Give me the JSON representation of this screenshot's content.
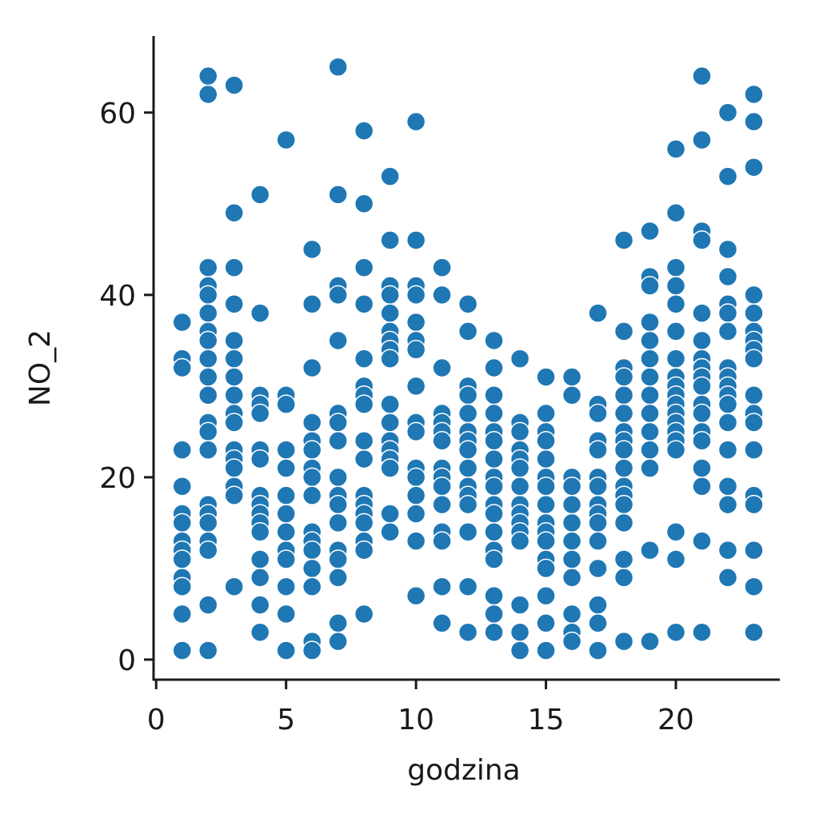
{
  "chart_data": {
    "type": "scatter",
    "x_label": "godzina",
    "y_label": "NO_2",
    "color": "#1f77b4",
    "edge_color": "#ffffff",
    "x": [
      1,
      1,
      1,
      1,
      1,
      1,
      1,
      1,
      1,
      1,
      1,
      1,
      1,
      1,
      2,
      2,
      2,
      2,
      2,
      2,
      2,
      2,
      2,
      2,
      2,
      2,
      2,
      2,
      2,
      2,
      2,
      2,
      2,
      2,
      2,
      3,
      3,
      3,
      3,
      3,
      3,
      3,
      3,
      3,
      3,
      3,
      3,
      3,
      3,
      3,
      3,
      4,
      4,
      4,
      4,
      4,
      4,
      4,
      4,
      4,
      4,
      4,
      4,
      4,
      4,
      4,
      4,
      5,
      5,
      5,
      5,
      5,
      5,
      5,
      5,
      5,
      5,
      5,
      5,
      5,
      6,
      6,
      6,
      6,
      6,
      6,
      6,
      6,
      6,
      6,
      6,
      6,
      6,
      6,
      6,
      6,
      7,
      7,
      7,
      7,
      7,
      7,
      7,
      7,
      7,
      7,
      7,
      7,
      7,
      7,
      7,
      7,
      7,
      8,
      8,
      8,
      8,
      8,
      8,
      8,
      8,
      8,
      8,
      8,
      8,
      8,
      8,
      8,
      8,
      8,
      9,
      9,
      9,
      9,
      9,
      9,
      9,
      9,
      9,
      9,
      9,
      9,
      9,
      9,
      9,
      9,
      9,
      10,
      10,
      10,
      10,
      10,
      10,
      10,
      10,
      10,
      10,
      10,
      10,
      10,
      10,
      10,
      10,
      11,
      11,
      11,
      11,
      11,
      11,
      11,
      11,
      11,
      11,
      11,
      11,
      11,
      11,
      11,
      12,
      12,
      12,
      12,
      12,
      12,
      12,
      12,
      12,
      12,
      12,
      12,
      12,
      12,
      12,
      13,
      13,
      13,
      13,
      13,
      13,
      13,
      13,
      13,
      13,
      13,
      13,
      13,
      13,
      13,
      13,
      13,
      14,
      14,
      14,
      14,
      14,
      14,
      14,
      14,
      14,
      14,
      14,
      14,
      14,
      14,
      14,
      15,
      15,
      15,
      15,
      15,
      15,
      15,
      15,
      15,
      15,
      15,
      15,
      15,
      15,
      15,
      15,
      16,
      16,
      16,
      16,
      16,
      16,
      16,
      16,
      16,
      16,
      16,
      16,
      17,
      17,
      17,
      17,
      17,
      17,
      17,
      17,
      17,
      17,
      17,
      17,
      17,
      17,
      17,
      18,
      18,
      18,
      18,
      18,
      18,
      18,
      18,
      18,
      18,
      18,
      18,
      18,
      18,
      18,
      18,
      18,
      19,
      19,
      19,
      19,
      19,
      19,
      19,
      19,
      19,
      19,
      19,
      19,
      19,
      19,
      20,
      20,
      20,
      20,
      20,
      20,
      20,
      20,
      20,
      20,
      20,
      20,
      20,
      20,
      20,
      20,
      20,
      20,
      20,
      21,
      21,
      21,
      21,
      21,
      21,
      21,
      21,
      21,
      21,
      21,
      21,
      21,
      21,
      21,
      21,
      21,
      21,
      22,
      22,
      22,
      22,
      22,
      22,
      22,
      22,
      22,
      22,
      22,
      22,
      22,
      22,
      22,
      22,
      22,
      22,
      23,
      23,
      23,
      23,
      23,
      23,
      23,
      23,
      23,
      23,
      23,
      23,
      23,
      23,
      23,
      23,
      23,
      23
    ],
    "values": [
      37,
      33,
      32,
      23,
      19,
      16,
      15,
      13,
      12,
      11,
      9,
      8,
      5,
      1,
      64,
      62,
      43,
      41,
      40,
      38,
      36,
      35,
      33,
      31,
      29,
      26,
      25,
      23,
      17,
      16,
      15,
      13,
      12,
      6,
      1,
      63,
      49,
      43,
      39,
      35,
      33,
      31,
      29,
      27,
      26,
      23,
      22,
      21,
      19,
      18,
      8,
      51,
      38,
      29,
      28,
      27,
      23,
      22,
      18,
      17,
      16,
      15,
      14,
      11,
      9,
      6,
      3,
      57,
      29,
      28,
      23,
      21,
      18,
      16,
      14,
      12,
      11,
      8,
      5,
      1,
      45,
      39,
      32,
      26,
      24,
      23,
      21,
      20,
      18,
      14,
      13,
      12,
      10,
      8,
      2,
      1,
      65,
      51,
      41,
      40,
      35,
      27,
      26,
      24,
      20,
      18,
      17,
      15,
      12,
      11,
      9,
      4,
      2,
      58,
      50,
      43,
      39,
      33,
      30,
      29,
      28,
      24,
      22,
      18,
      17,
      16,
      15,
      13,
      12,
      5,
      53,
      46,
      41,
      40,
      38,
      36,
      35,
      34,
      33,
      28,
      26,
      24,
      23,
      22,
      21,
      16,
      14,
      59,
      46,
      41,
      40,
      37,
      35,
      34,
      30,
      26,
      25,
      21,
      20,
      18,
      16,
      13,
      7,
      43,
      40,
      32,
      27,
      26,
      25,
      24,
      21,
      20,
      19,
      17,
      14,
      13,
      8,
      4,
      39,
      36,
      30,
      29,
      27,
      25,
      24,
      23,
      21,
      19,
      18,
      17,
      14,
      8,
      3,
      35,
      32,
      29,
      27,
      25,
      24,
      22,
      20,
      19,
      17,
      16,
      14,
      12,
      11,
      7,
      5,
      3,
      33,
      26,
      25,
      23,
      22,
      21,
      19,
      17,
      16,
      15,
      14,
      13,
      6,
      3,
      1,
      31,
      27,
      25,
      24,
      22,
      20,
      19,
      17,
      15,
      14,
      13,
      11,
      10,
      7,
      4,
      1,
      31,
      29,
      20,
      19,
      17,
      15,
      13,
      11,
      9,
      5,
      3,
      2,
      38,
      28,
      27,
      24,
      23,
      20,
      19,
      17,
      16,
      15,
      13,
      10,
      6,
      4,
      1,
      46,
      36,
      32,
      31,
      29,
      27,
      25,
      24,
      23,
      21,
      19,
      18,
      17,
      15,
      11,
      9,
      2,
      47,
      42,
      41,
      37,
      35,
      33,
      31,
      29,
      27,
      25,
      23,
      21,
      12,
      2,
      56,
      49,
      43,
      41,
      39,
      36,
      33,
      31,
      30,
      29,
      28,
      27,
      26,
      25,
      24,
      23,
      14,
      11,
      3,
      64,
      57,
      47,
      46,
      38,
      35,
      33,
      32,
      31,
      30,
      28,
      27,
      25,
      24,
      21,
      19,
      13,
      3,
      60,
      53,
      45,
      42,
      39,
      38,
      36,
      32,
      31,
      30,
      29,
      28,
      26,
      23,
      19,
      17,
      12,
      9,
      62,
      59,
      54,
      40,
      38,
      36,
      35,
      34,
      33,
      29,
      27,
      26,
      23,
      18,
      17,
      12,
      8,
      3
    ],
    "xlim": [
      -0.1,
      24
    ],
    "ylim": [
      -2.2,
      68.4
    ],
    "xticks": [
      0,
      5,
      10,
      15,
      20
    ],
    "yticks": [
      0,
      20,
      40,
      60
    ]
  }
}
